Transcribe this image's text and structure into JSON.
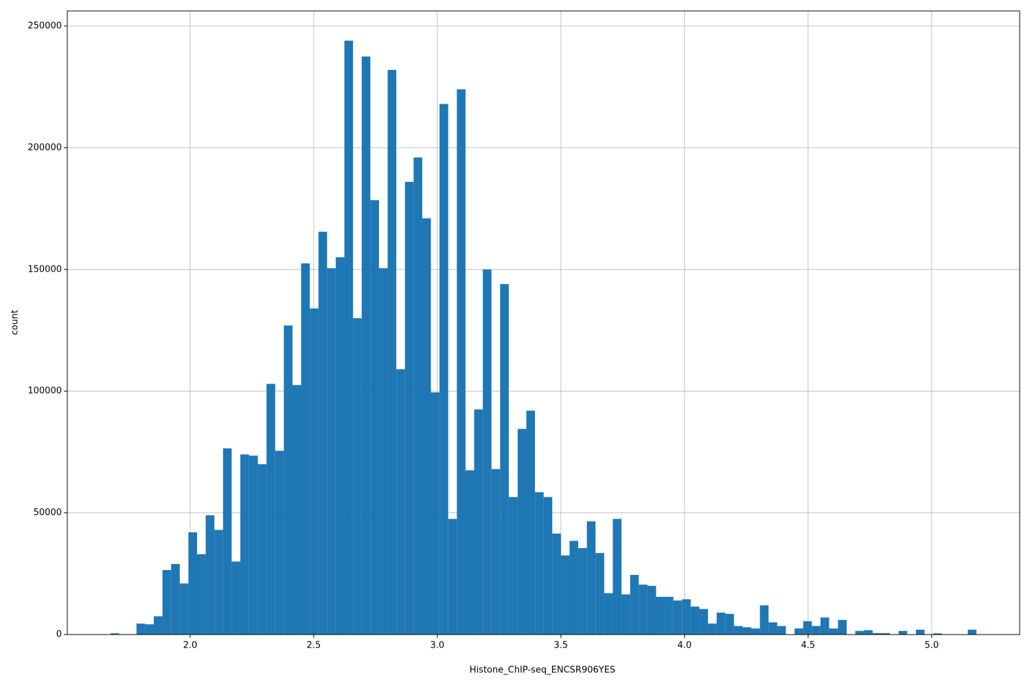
{
  "chart_data": {
    "type": "histogram",
    "xlabel": "Histone_ChIP-seq_ENCSR906YES",
    "ylabel": "count",
    "color": "#1f77b4",
    "grid": true,
    "bins": [
      1.678,
      1.713,
      1.748,
      1.783,
      1.818,
      1.853,
      1.888,
      1.923,
      1.958,
      1.993,
      2.028,
      2.063,
      2.098,
      2.133,
      2.168,
      2.203,
      2.238,
      2.274,
      2.309,
      2.344,
      2.379,
      2.414,
      2.449,
      2.484,
      2.519,
      2.554,
      2.589,
      2.624,
      2.659,
      2.694,
      2.729,
      2.764,
      2.799,
      2.834,
      2.869,
      2.904,
      2.939,
      2.974,
      3.009,
      3.044,
      3.079,
      3.114,
      3.149,
      3.184,
      3.219,
      3.254,
      3.289,
      3.325,
      3.36,
      3.395,
      3.43,
      3.465,
      3.5,
      3.535,
      3.57,
      3.605,
      3.64,
      3.675,
      3.71,
      3.745,
      3.78,
      3.815,
      3.85,
      3.885,
      3.92,
      3.955,
      3.99,
      4.025,
      4.06,
      4.095,
      4.13,
      4.165,
      4.2,
      4.235,
      4.27,
      4.305,
      4.34,
      4.375,
      4.41,
      4.445,
      4.48,
      4.515,
      4.55,
      4.585,
      4.621,
      4.656,
      4.691,
      4.726,
      4.761,
      4.796,
      4.831,
      4.866,
      4.901,
      4.936,
      4.971,
      5.006,
      5.041,
      5.076,
      5.111,
      5.146,
      5.181
    ],
    "counts": [
      500,
      0,
      0,
      4500,
      4200,
      7500,
      26500,
      29000,
      21000,
      42000,
      33000,
      49000,
      43000,
      76500,
      30000,
      74000,
      73500,
      70000,
      103000,
      75500,
      127000,
      102500,
      152500,
      134000,
      165500,
      150500,
      155000,
      244000,
      130000,
      237500,
      178500,
      150500,
      232000,
      109000,
      186000,
      196000,
      171000,
      99500,
      218000,
      47500,
      224000,
      67500,
      92500,
      150000,
      68000,
      144000,
      56500,
      84500,
      92000,
      58500,
      56500,
      41500,
      32500,
      38500,
      35500,
      46500,
      33500,
      17000,
      47500,
      16500,
      24500,
      20500,
      20000,
      15500,
      15500,
      14000,
      14500,
      11500,
      10500,
      4500,
      9000,
      8500,
      3500,
      3000,
      2500,
      12000,
      5000,
      3500,
      0,
      2500,
      5500,
      3500,
      7000,
      2500,
      6000,
      0,
      1500,
      1800,
      600,
      600,
      0,
      1500,
      0,
      2000,
      0,
      500,
      0,
      0,
      0,
      2000
    ],
    "xlim": [
      1.503,
      5.356
    ],
    "ylim": [
      0,
      256200
    ],
    "xticks": [
      {
        "value": 2,
        "label": "2.0"
      },
      {
        "value": 2.5,
        "label": "2.5"
      },
      {
        "value": 3,
        "label": "3.0"
      },
      {
        "value": 3.5,
        "label": "3.5"
      },
      {
        "value": 4,
        "label": "4.0"
      },
      {
        "value": 4.5,
        "label": "4.5"
      },
      {
        "value": 5,
        "label": "5.0"
      }
    ],
    "yticks": [
      0,
      50000,
      100000,
      150000,
      200000,
      250000
    ]
  }
}
